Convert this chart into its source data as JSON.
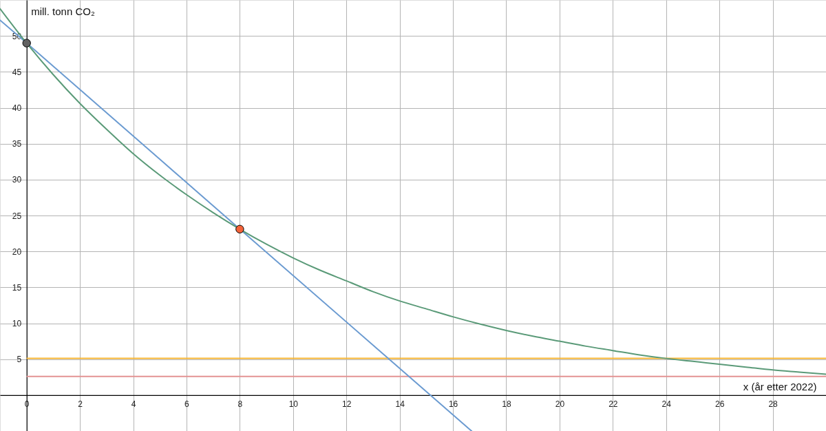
{
  "chart_data": {
    "type": "line",
    "xlabel": "x (år etter 2022)",
    "ylabel": "mill. tonn CO₂",
    "xlim": [
      -1,
      30
    ],
    "ylim": [
      -5,
      55
    ],
    "xticks": [
      0,
      2,
      4,
      6,
      8,
      10,
      12,
      14,
      16,
      18,
      20,
      22,
      24,
      26,
      28
    ],
    "yticks": [
      5,
      10,
      15,
      20,
      25,
      30,
      35,
      40,
      45,
      50
    ],
    "grid": true,
    "series": [
      {
        "color": "#6b9bd1",
        "x": [
          -1,
          0,
          8,
          16.7
        ],
        "values": [
          52.2,
          49,
          23.1,
          -5.0
        ]
      },
      {
        "color": "#5a9a78",
        "x": [
          -1,
          0,
          1,
          2,
          3,
          4,
          5,
          6,
          7,
          8,
          9,
          10,
          11,
          12,
          13,
          14,
          15,
          16,
          17,
          18,
          19,
          20,
          21,
          22,
          23,
          24,
          25,
          26,
          27,
          28,
          29,
          30
        ],
        "values": [
          53.8,
          49.0,
          44.6,
          40.6,
          37.0,
          33.6,
          30.6,
          27.9,
          25.4,
          23.1,
          21.0,
          19.1,
          17.4,
          15.9,
          14.4,
          13.1,
          12.0,
          10.9,
          9.9,
          9.0,
          8.2,
          7.5,
          6.8,
          6.2,
          5.6,
          5.1,
          4.7,
          4.3,
          3.9,
          3.5,
          3.2,
          2.9
        ]
      },
      {
        "type": "scatter",
        "marker": "circle",
        "color": "#616161",
        "x": [
          0
        ],
        "values": [
          49
        ]
      },
      {
        "type": "scatter",
        "marker": "circle",
        "color": "#f4633a",
        "x": [
          8
        ],
        "values": [
          23.1
        ]
      }
    ],
    "ref_lines": [
      {
        "axis": "y",
        "value": 5.1,
        "color": "#f5b330"
      },
      {
        "axis": "y",
        "value": 2.6,
        "color": "#e39393"
      }
    ]
  }
}
